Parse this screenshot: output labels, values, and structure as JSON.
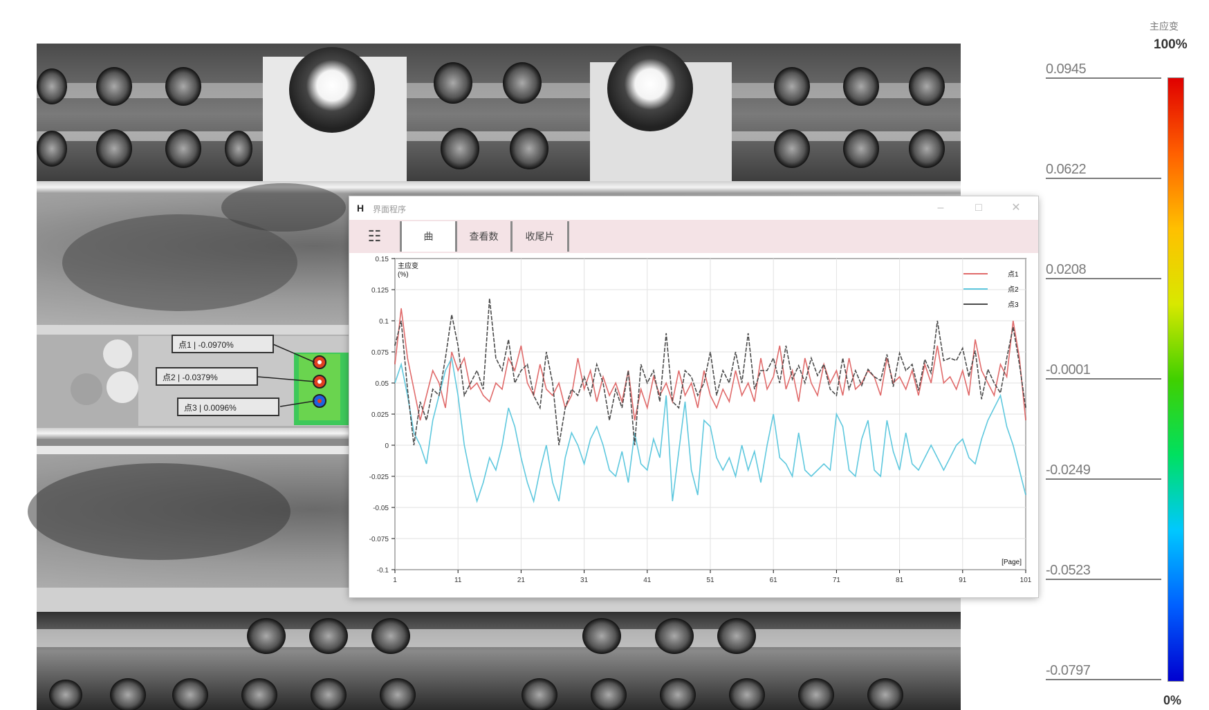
{
  "window": {
    "logo": "H",
    "title": "界面程序",
    "tabs": [
      {
        "label": "☷",
        "active": false
      },
      {
        "label": "曲",
        "active": true
      },
      {
        "label": "查看数",
        "active": false
      },
      {
        "label": "收尾片",
        "active": false
      }
    ],
    "controls": {
      "minimize": "–",
      "maximize": "□",
      "close": "✕"
    }
  },
  "point_tags": [
    {
      "text": "点1 | -0.0970%"
    },
    {
      "text": "点2 | -0.0379%"
    },
    {
      "text": "点3 | 0.0096%"
    }
  ],
  "colorbar": {
    "label": "主应变",
    "max_label": "100%",
    "min_label": "0%",
    "scale_values": [
      "0.0945",
      "0.0622",
      "0.0208",
      "-0.0001",
      "-0.0249",
      "-0.0523",
      "-0.0797"
    ],
    "gradient": [
      "#0000d0",
      "#0060ff",
      "#00c8ff",
      "#00e060",
      "#40d000",
      "#d8e800",
      "#ffc000",
      "#ff6000",
      "#e00000"
    ]
  },
  "chart_data": {
    "type": "line",
    "ylabel": "主应变\n(%)",
    "xlabel": "[Page]",
    "ylim": [
      -0.1,
      0.15
    ],
    "xlim": [
      1,
      101
    ],
    "yticks": [
      0.15,
      0.125,
      0.1,
      0.075,
      0.05,
      0.025,
      0,
      -0.025,
      -0.05,
      -0.075,
      -0.1
    ],
    "ytick_labels": [
      "0.15",
      "0.125",
      "0.1",
      "0.075",
      "0.05",
      "0.025",
      "0",
      "-0.025",
      "-0.05",
      "-0.075",
      "-0.1"
    ],
    "xticks": [
      1,
      11,
      21,
      31,
      41,
      51,
      61,
      71,
      81,
      91,
      101
    ],
    "xtick_labels": [
      "1",
      "11",
      "21",
      "31",
      "41",
      "51",
      "61",
      "71",
      "81",
      "91",
      "101"
    ],
    "grid": true,
    "legend_position": "top-right",
    "series": [
      {
        "name": "点1",
        "color": "#e06a6a",
        "values": [
          0.065,
          0.11,
          0.07,
          0.045,
          0.02,
          0.04,
          0.06,
          0.05,
          0.03,
          0.075,
          0.06,
          0.07,
          0.045,
          0.05,
          0.04,
          0.035,
          0.05,
          0.045,
          0.07,
          0.06,
          0.08,
          0.05,
          0.04,
          0.065,
          0.045,
          0.04,
          0.05,
          0.03,
          0.04,
          0.07,
          0.045,
          0.06,
          0.035,
          0.055,
          0.04,
          0.05,
          0.035,
          0.06,
          0.02,
          0.045,
          0.03,
          0.055,
          0.04,
          0.05,
          0.035,
          0.06,
          0.04,
          0.05,
          0.03,
          0.06,
          0.04,
          0.03,
          0.045,
          0.035,
          0.06,
          0.04,
          0.05,
          0.035,
          0.07,
          0.045,
          0.055,
          0.08,
          0.045,
          0.06,
          0.035,
          0.07,
          0.05,
          0.04,
          0.065,
          0.05,
          0.06,
          0.04,
          0.07,
          0.045,
          0.05,
          0.06,
          0.055,
          0.04,
          0.07,
          0.05,
          0.055,
          0.045,
          0.06,
          0.04,
          0.065,
          0.05,
          0.08,
          0.05,
          0.055,
          0.045,
          0.06,
          0.04,
          0.085,
          0.06,
          0.05,
          0.04,
          0.065,
          0.055,
          0.1,
          0.07,
          0.02
        ]
      },
      {
        "name": "点2",
        "color": "#5ec8de",
        "values": [
          0.05,
          0.065,
          0.04,
          0.01,
          0.0,
          -0.015,
          0.02,
          0.04,
          0.06,
          0.07,
          0.04,
          0.0,
          -0.025,
          -0.045,
          -0.03,
          -0.01,
          -0.02,
          0.0,
          0.03,
          0.015,
          -0.01,
          -0.03,
          -0.045,
          -0.02,
          0.0,
          -0.03,
          -0.045,
          -0.01,
          0.01,
          0.0,
          -0.015,
          0.005,
          0.015,
          0.0,
          -0.02,
          -0.025,
          -0.005,
          -0.03,
          0.01,
          -0.015,
          -0.02,
          0.005,
          -0.01,
          0.04,
          -0.045,
          -0.005,
          0.035,
          -0.02,
          -0.04,
          0.02,
          0.015,
          -0.01,
          -0.02,
          -0.01,
          -0.025,
          0.0,
          -0.02,
          -0.005,
          -0.03,
          0.0,
          0.025,
          -0.01,
          -0.015,
          -0.025,
          0.01,
          -0.02,
          -0.025,
          -0.02,
          -0.015,
          -0.02,
          0.025,
          0.015,
          -0.02,
          -0.025,
          0.005,
          0.02,
          -0.02,
          -0.025,
          0.02,
          -0.005,
          -0.02,
          0.01,
          -0.015,
          -0.02,
          -0.01,
          0.0,
          -0.01,
          -0.02,
          -0.01,
          0.0,
          0.005,
          -0.01,
          -0.015,
          0.005,
          0.02,
          0.03,
          0.04,
          0.015,
          0.0,
          -0.02,
          -0.04
        ]
      },
      {
        "name": "点3",
        "color": "#4a4a4a",
        "values": [
          0.08,
          0.1,
          0.045,
          0.0,
          0.035,
          0.02,
          0.045,
          0.04,
          0.07,
          0.105,
          0.08,
          0.04,
          0.05,
          0.06,
          0.045,
          0.118,
          0.07,
          0.06,
          0.085,
          0.05,
          0.06,
          0.065,
          0.04,
          0.03,
          0.075,
          0.05,
          0.0,
          0.03,
          0.045,
          0.04,
          0.055,
          0.04,
          0.065,
          0.05,
          0.02,
          0.045,
          0.03,
          0.06,
          0.0,
          0.065,
          0.05,
          0.06,
          0.035,
          0.09,
          0.035,
          0.03,
          0.06,
          0.055,
          0.04,
          0.05,
          0.075,
          0.04,
          0.06,
          0.05,
          0.075,
          0.05,
          0.09,
          0.045,
          0.06,
          0.06,
          0.07,
          0.05,
          0.08,
          0.053,
          0.064,
          0.05,
          0.07,
          0.056,
          0.065,
          0.045,
          0.04,
          0.07,
          0.045,
          0.06,
          0.048,
          0.061,
          0.055,
          0.052,
          0.073,
          0.047,
          0.074,
          0.06,
          0.065,
          0.044,
          0.069,
          0.058,
          0.1,
          0.068,
          0.07,
          0.068,
          0.078,
          0.055,
          0.076,
          0.037,
          0.061,
          0.05,
          0.042,
          0.07,
          0.095,
          0.065,
          0.03
        ]
      }
    ]
  }
}
